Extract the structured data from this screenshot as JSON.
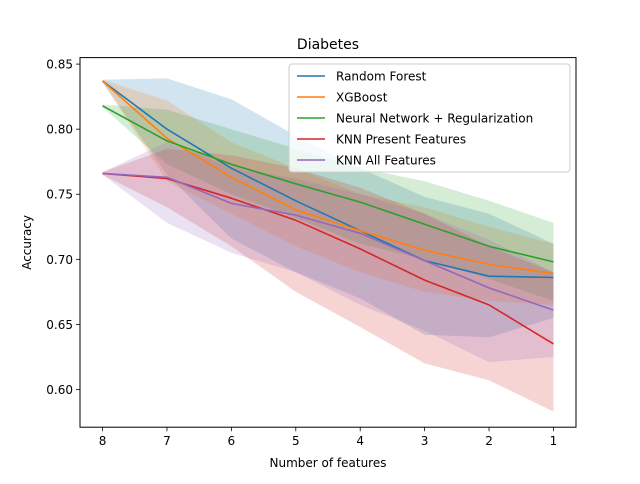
{
  "chart_data": {
    "type": "line",
    "title": "Diabetes",
    "xlabel": "Number of features",
    "ylabel": "Accuracy",
    "x": [
      8,
      7,
      6,
      5,
      4,
      3,
      2,
      1
    ],
    "xlim": [
      8.35,
      0.65
    ],
    "ylim": [
      0.571,
      0.855
    ],
    "yticks": [
      0.6,
      0.65,
      0.7,
      0.75,
      0.8,
      0.85
    ],
    "ytick_labels": [
      "0.60",
      "0.65",
      "0.70",
      "0.75",
      "0.80",
      "0.85"
    ],
    "xtick_labels": [
      "8",
      "7",
      "6",
      "5",
      "4",
      "3",
      "2",
      "1"
    ],
    "grid": false,
    "legend_position": "top-right",
    "series": [
      {
        "name": "Random Forest",
        "color": "#1f77b4",
        "values": [
          0.837,
          0.8,
          0.77,
          0.745,
          0.722,
          0.699,
          0.687,
          0.686
        ],
        "upper": [
          0.838,
          0.839,
          0.823,
          0.795,
          0.77,
          0.748,
          0.735,
          0.712
        ],
        "lower": [
          0.836,
          0.765,
          0.716,
          0.69,
          0.67,
          0.642,
          0.64,
          0.655
        ]
      },
      {
        "name": "XGBoost",
        "color": "#ff7f0e",
        "values": [
          0.837,
          0.793,
          0.763,
          0.738,
          0.722,
          0.707,
          0.696,
          0.689
        ],
        "upper": [
          0.838,
          0.822,
          0.79,
          0.77,
          0.75,
          0.74,
          0.725,
          0.712
        ],
        "lower": [
          0.836,
          0.76,
          0.735,
          0.71,
          0.69,
          0.675,
          0.668,
          0.665
        ]
      },
      {
        "name": "Neural Network + Regularization",
        "color": "#2ca02c",
        "values": [
          0.818,
          0.791,
          0.773,
          0.758,
          0.744,
          0.727,
          0.71,
          0.698
        ],
        "upper": [
          0.819,
          0.815,
          0.8,
          0.785,
          0.77,
          0.76,
          0.745,
          0.728
        ],
        "lower": [
          0.817,
          0.773,
          0.75,
          0.732,
          0.712,
          0.7,
          0.685,
          0.668
        ]
      },
      {
        "name": "KNN Present Features",
        "color": "#d62728",
        "values": [
          0.766,
          0.762,
          0.747,
          0.73,
          0.708,
          0.684,
          0.665,
          0.635
        ],
        "upper": [
          0.767,
          0.785,
          0.78,
          0.77,
          0.755,
          0.735,
          0.71,
          0.69
        ],
        "lower": [
          0.765,
          0.74,
          0.71,
          0.675,
          0.648,
          0.62,
          0.607,
          0.583
        ]
      },
      {
        "name": "KNN All Features",
        "color": "#9467bd",
        "values": [
          0.766,
          0.763,
          0.743,
          0.734,
          0.72,
          0.699,
          0.678,
          0.661
        ],
        "upper": [
          0.767,
          0.79,
          0.77,
          0.762,
          0.75,
          0.735,
          0.715,
          0.69
        ],
        "lower": [
          0.765,
          0.728,
          0.705,
          0.69,
          0.665,
          0.645,
          0.621,
          0.625
        ]
      }
    ]
  }
}
